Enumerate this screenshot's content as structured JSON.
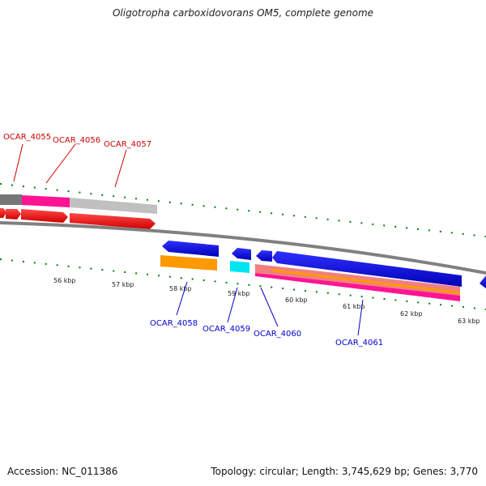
{
  "title": "Oligotropha carboxidovorans OM5, complete genome",
  "footer": {
    "accession": "Accession: NC_011386",
    "summary": "Topology: circular; Length: 3,745,629 bp; Genes: 3,770"
  },
  "scale_labels": [
    "56 kbp",
    "57 kbp",
    "58 kbp",
    "59 kbp",
    "60 kbp",
    "61 kbp",
    "62 kbp",
    "63 kbp"
  ],
  "gene_labels_top": [
    "OCAR_4055",
    "OCAR_4056",
    "OCAR_4057"
  ],
  "gene_labels_bottom": [
    "OCAR_4058",
    "OCAR_4059",
    "OCAR_4060",
    "OCAR_4061"
  ],
  "colors": {
    "forward_label": "#cc0000",
    "reverse_label": "#0000cc",
    "backbone": "#808080",
    "forward_cds": "#ff0000",
    "reverse_cds": "#0000ff",
    "magenta": "#ff1493",
    "orange": "#ff9900",
    "cyan": "#00e5ee",
    "tick": "#008000"
  }
}
